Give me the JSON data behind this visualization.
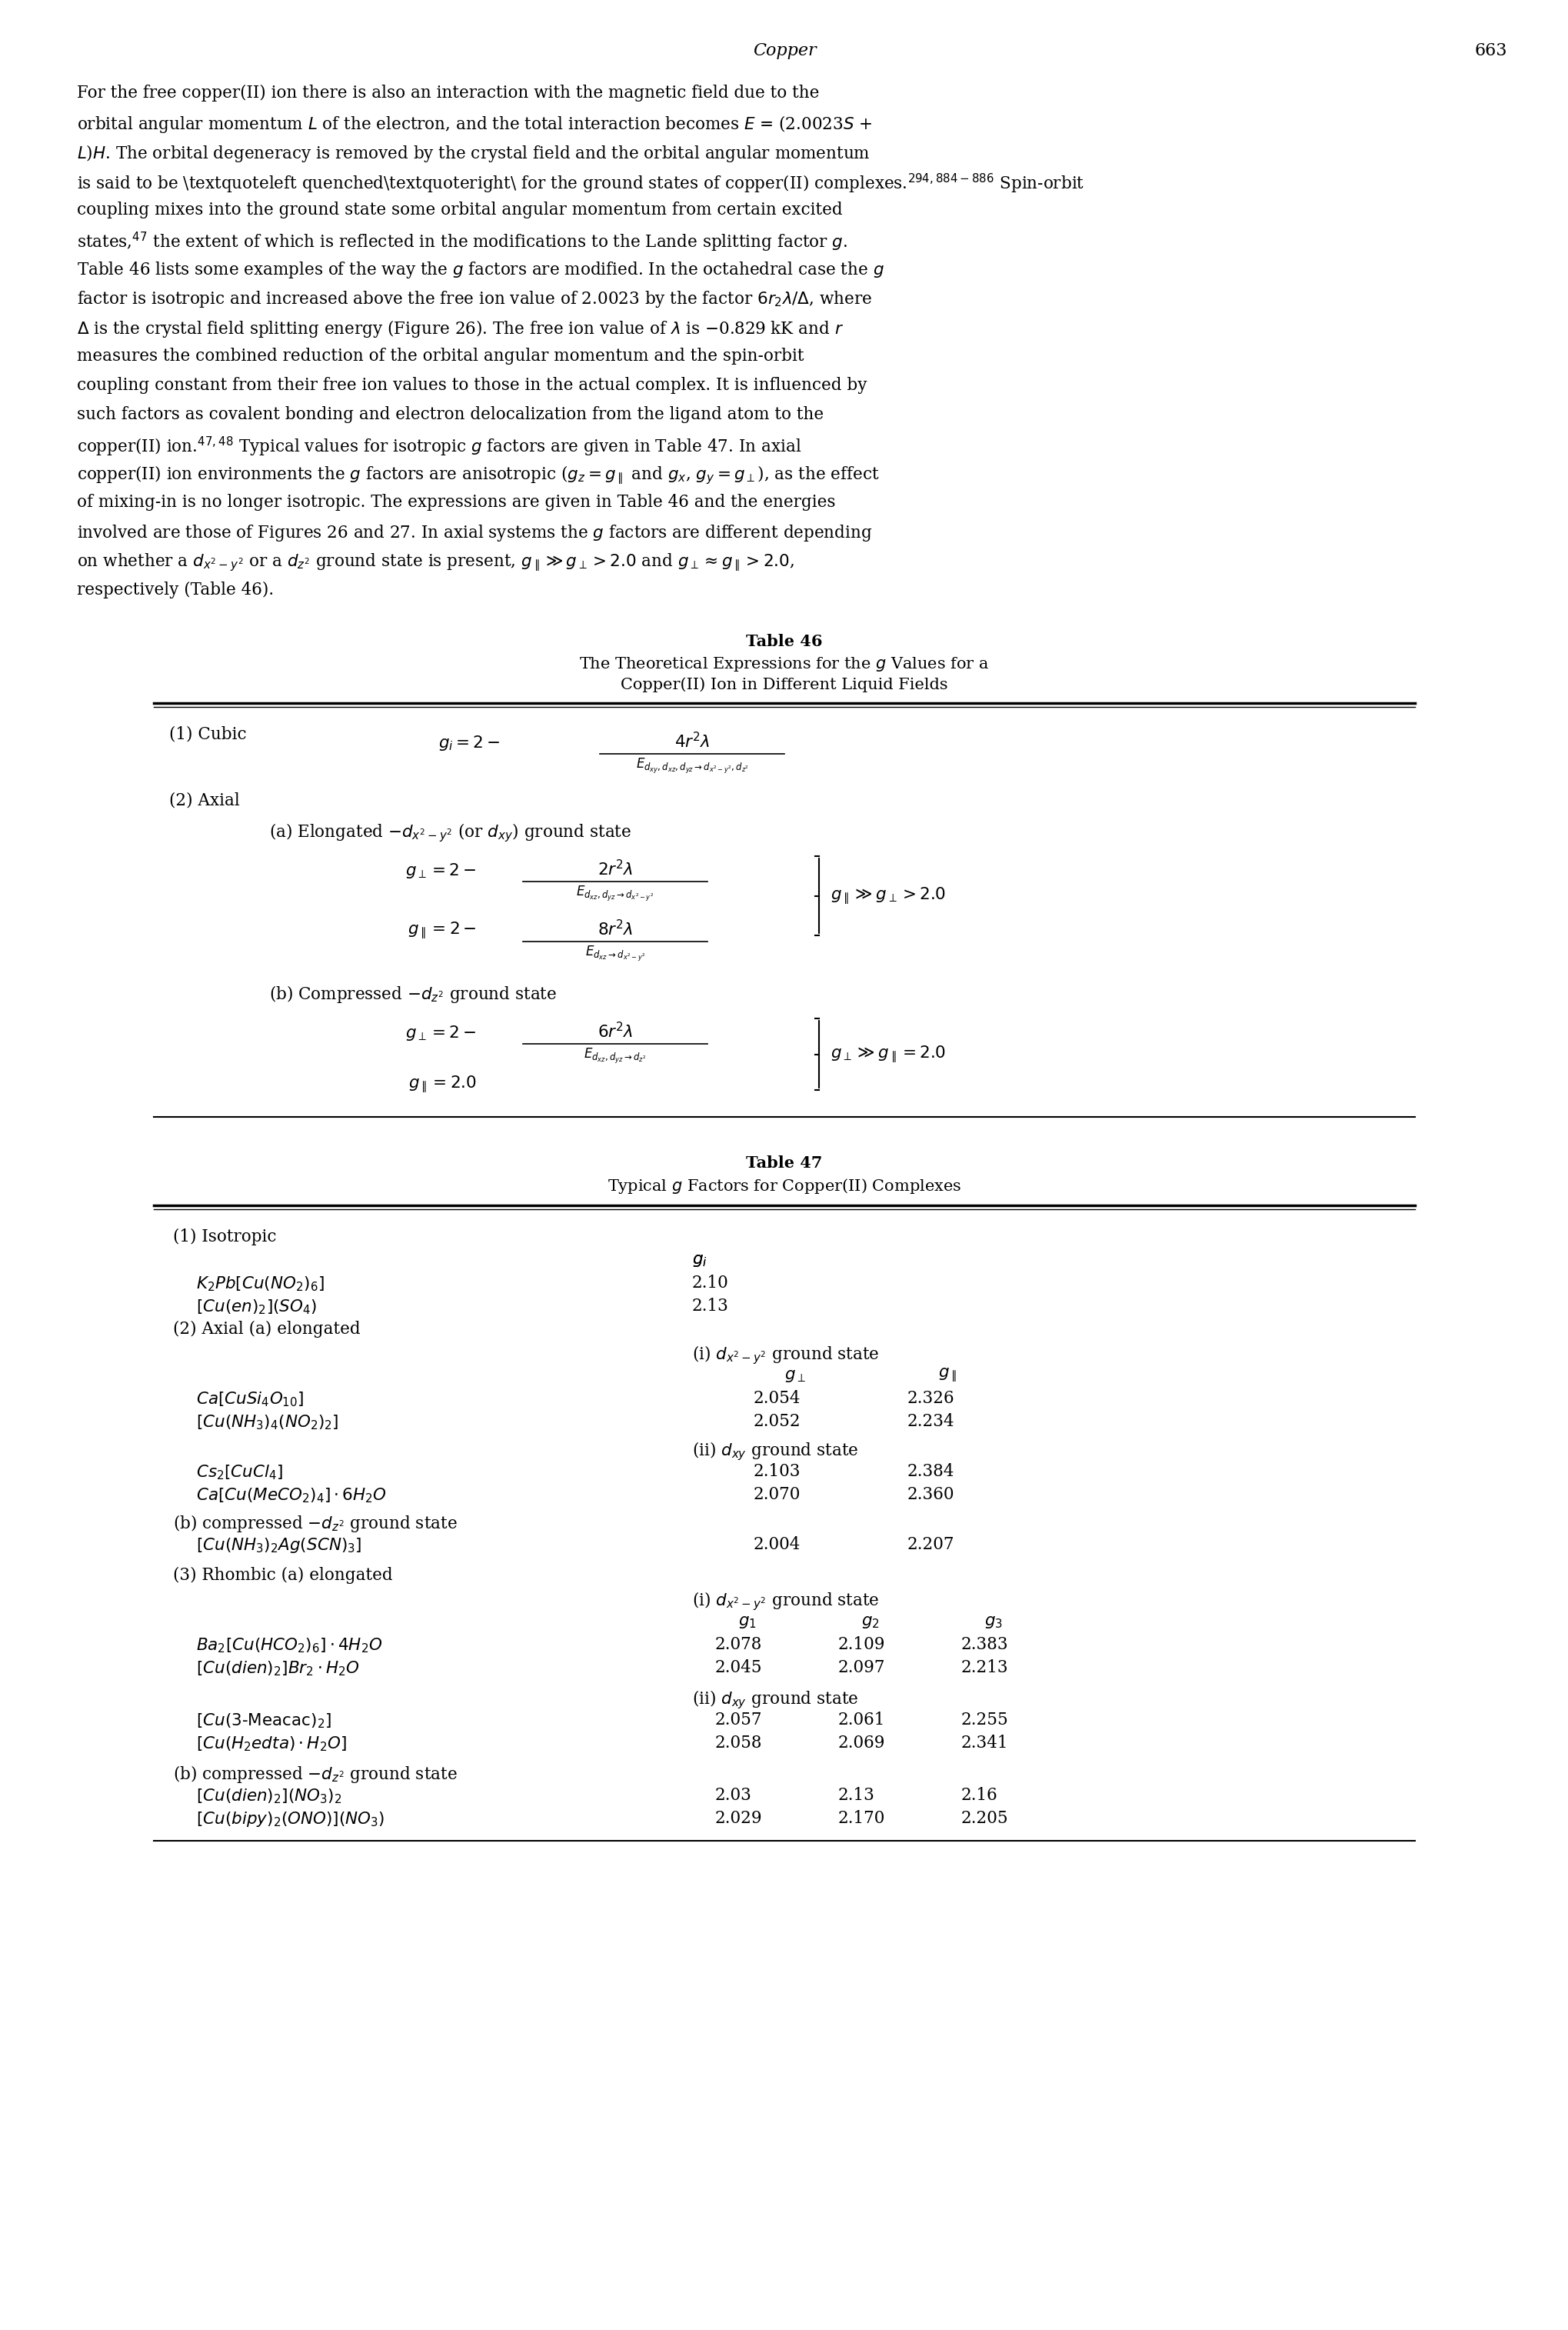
{
  "page_title": "Copper",
  "page_number": "663",
  "body_text": [
    "For the free copper(II) ion there is also an interaction with the magnetic field due to the orbital angular momentum L of the electron, and the total interaction becomes E = (2.0023S +",
    "L)H. The orbital degeneracy is removed by the crystal field and the orbital angular momentum is said to be ‘quenched’ for the ground states of copper(II) complexes.",
    "294,884–886 Spin-orbit coupling mixes into the ground state some orbital angular momentum from certain excited states,47 the extent of which is reflected in the modifications to the Lande splitting factor g.",
    "Table 46 lists some examples of the way the g factors are modified. In the octahedral case the g factor is isotropic and increased above the free ion value of 2.0023 by the factor 6r₂λ/Δ, where",
    "Δ is the crystal field splitting energy (Figure 26). The free ion value of λ is −0.829 kK and r measures the combined reduction of the orbital angular momentum and the spin-orbit",
    "coupling constant from their free ion values to those in the actual complex. It is influenced by such factors as covalent bonding and electron delocalization from the ligand atom to the",
    "copper(II) ion.47,48 Typical values for isotropic g factors are given in Table 47. In axial copper(II) ion environments the g factors are anisotropic (gₓ = g‖ and gₓ, gʸ = g⊥), as the effect",
    "of mixing-in is no longer isotropic. The expressions are given in Table 46 and the energies involved are those of Figures 26 and 27. In axial systems the g factors are different depending",
    "on whether a dₓ²₋ʸ² or a dₓ² ground state is present, g‖ ≫ g⊥ > 2.0 and g⊥ ≈ g‖ > 2.0, respectively (Table 46)."
  ],
  "background_color": "#ffffff",
  "text_color": "#000000"
}
